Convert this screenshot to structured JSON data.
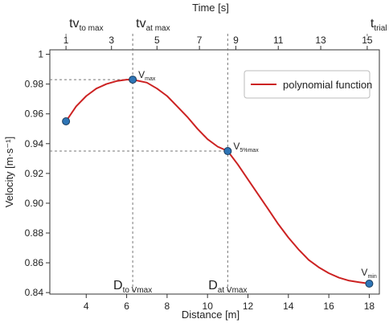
{
  "chart_data": {
    "type": "line",
    "xlabel": "Distance [m]",
    "ylabel": "Velocity  [m·s⁻¹]",
    "top_xlabel": "Time [s]",
    "xlim": [
      2.2,
      18.5
    ],
    "ylim": [
      0.839,
      1.003
    ],
    "x_ticks": [
      4,
      6,
      8,
      10,
      12,
      14,
      16,
      18
    ],
    "y_ticks": [
      0.84,
      0.86,
      0.88,
      0.9,
      0.92,
      0.94,
      0.96,
      0.98,
      1.0
    ],
    "y_tick_labels": [
      "0.84",
      "0.86",
      "0.88",
      "0.90",
      "0.92",
      "0.94",
      "0.96",
      "0.98",
      "1"
    ],
    "top_ticks": [
      {
        "label": "1",
        "at_distance": 3.0
      },
      {
        "label": "3",
        "at_distance": 5.25
      },
      {
        "label": "5",
        "at_distance": 7.5
      },
      {
        "label": "7",
        "at_distance": 9.6
      },
      {
        "label": "9",
        "at_distance": 11.4
      },
      {
        "label": "11",
        "at_distance": 13.5
      },
      {
        "label": "13",
        "at_distance": 15.6
      },
      {
        "label": "15",
        "at_distance": 17.9
      }
    ],
    "grid": false,
    "legend": {
      "position": "top-right",
      "entries": [
        "polynomial function"
      ]
    },
    "series": [
      {
        "name": "polynomial function",
        "color": "#cc2222",
        "x": [
          3.0,
          3.5,
          4.0,
          4.5,
          5.0,
          5.5,
          6.0,
          6.3,
          7.0,
          7.5,
          8.0,
          8.5,
          9.0,
          9.5,
          10.0,
          10.5,
          11.0,
          11.5,
          12.0,
          12.5,
          13.0,
          13.5,
          14.0,
          14.5,
          15.0,
          15.5,
          16.0,
          16.5,
          17.0,
          17.5,
          18.0
        ],
        "y": [
          0.955,
          0.965,
          0.972,
          0.977,
          0.98,
          0.982,
          0.983,
          0.983,
          0.981,
          0.977,
          0.972,
          0.965,
          0.958,
          0.95,
          0.943,
          0.938,
          0.935,
          0.926,
          0.916,
          0.906,
          0.896,
          0.886,
          0.877,
          0.869,
          0.862,
          0.857,
          0.853,
          0.85,
          0.848,
          0.847,
          0.846
        ]
      }
    ],
    "points": [
      {
        "label": "V",
        "sub": "max",
        "x": 6.3,
        "y": 0.983
      },
      {
        "label": "V",
        "sub": "5%max",
        "x": 11.0,
        "y": 0.935
      },
      {
        "label": "",
        "sub": "",
        "x": 3.0,
        "y": 0.955
      },
      {
        "label": "V",
        "sub": "min",
        "x": 18.0,
        "y": 0.846
      }
    ],
    "point_color": "#2e75b6",
    "reference_lines": [
      {
        "x": 6.3,
        "y": 0.983,
        "bottom_label": "D",
        "bottom_sub": "to Vmax",
        "top_label": "tv",
        "top_sub": "at max"
      },
      {
        "x": 11.0,
        "y": 0.935,
        "bottom_label": "D",
        "bottom_sub": "at Vmax",
        "top_label": "",
        "top_sub": ""
      }
    ],
    "top_annotations": [
      {
        "label": "tv",
        "sub": "to max",
        "at_distance": 3.0
      },
      {
        "label": "tv",
        "sub": "at max",
        "at_distance": 6.3
      },
      {
        "label": "t",
        "sub": "trial 15",
        "at_distance": 17.9
      }
    ]
  }
}
